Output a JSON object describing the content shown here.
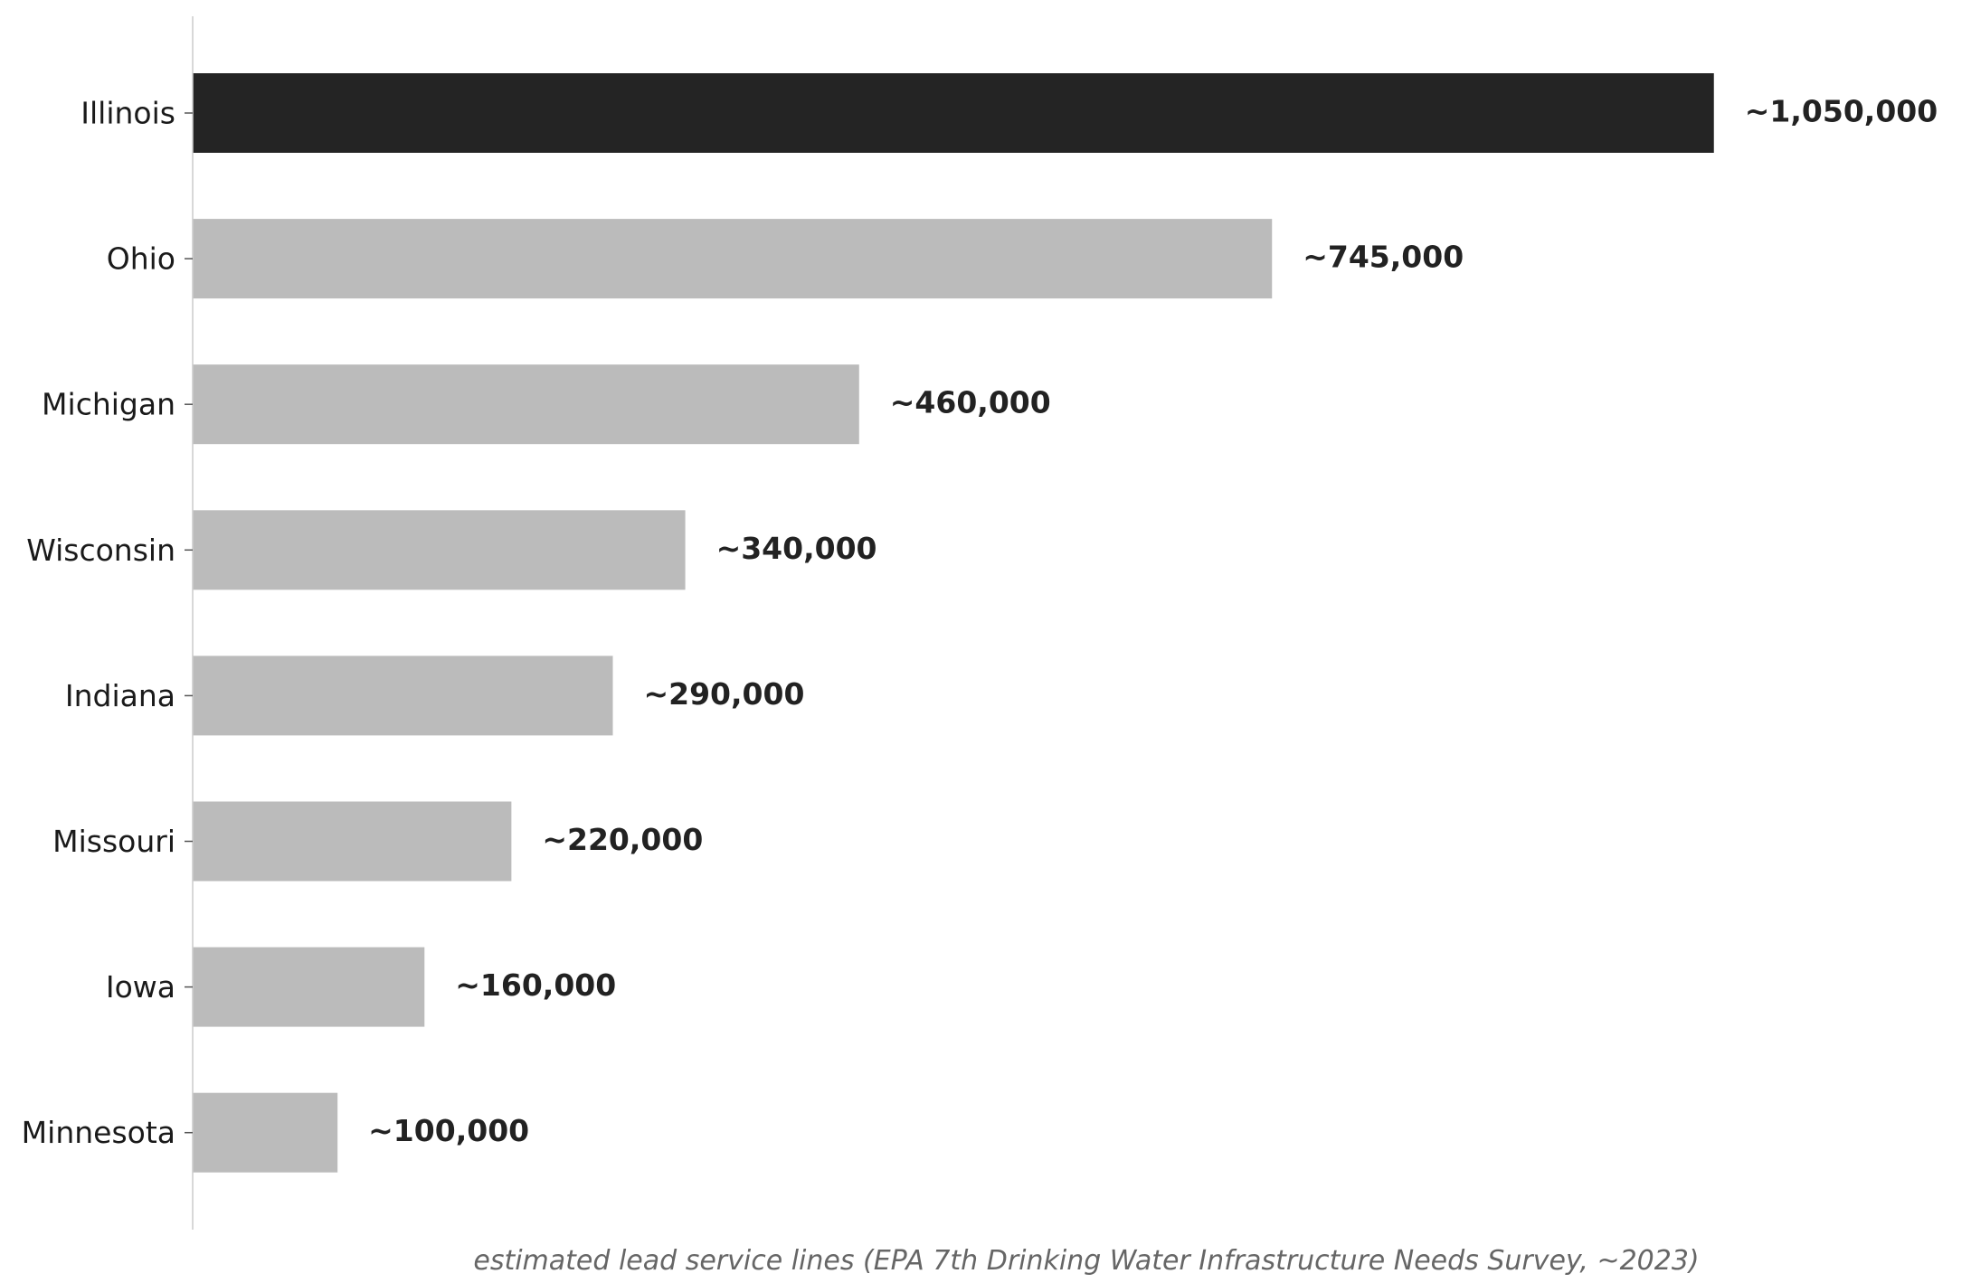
{
  "chart_data": {
    "type": "bar",
    "orientation": "horizontal",
    "categories": [
      "Illinois",
      "Ohio",
      "Michigan",
      "Wisconsin",
      "Indiana",
      "Missouri",
      "Iowa",
      "Minnesota"
    ],
    "values": [
      1050000,
      745000,
      460000,
      340000,
      290000,
      220000,
      160000,
      100000
    ],
    "value_labels": [
      "~1,050,000",
      "~745,000",
      "~460,000",
      "~340,000",
      "~290,000",
      "~220,000",
      "~160,000",
      "~100,000"
    ],
    "title": "",
    "xlabel": "estimated lead service lines (EPA 7th Drinking Water Infrastructure Needs Survey, ~2023)",
    "ylabel": "",
    "xlim": [
      0,
      1200000
    ],
    "grid": false,
    "highlight_category": "Illinois",
    "colors": {
      "highlight": "#242424",
      "default": "#bbbbbb",
      "axis": "#cccccc",
      "label": "#1a1a1a",
      "value_label": "#222222",
      "caption": "#666666"
    }
  }
}
